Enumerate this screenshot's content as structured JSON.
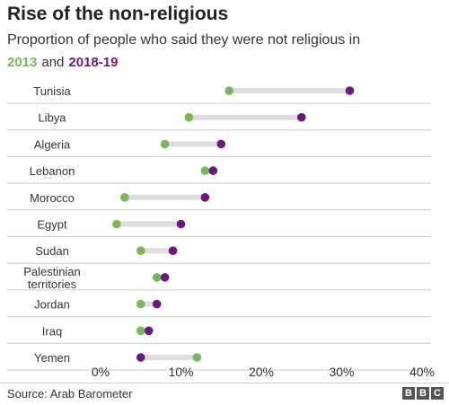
{
  "header": {
    "title": "Rise of the non-religious",
    "subtitle": "Proportion of people who said they were not religious in"
  },
  "legend": {
    "label_2013": "2013",
    "connector": "and",
    "label_2018": "2018-19"
  },
  "colors": {
    "y2013": "#7cb65a",
    "y2018": "#6a1a7c",
    "connector_bar": "#dddddd",
    "gridline": "#cccccc"
  },
  "chart_data": {
    "type": "dumbbell",
    "title": "Rise of the non-religious",
    "subtitle": "Proportion of people who said they were not religious in",
    "xlim": [
      0,
      40
    ],
    "xticks": [
      0,
      10,
      20,
      30,
      40
    ],
    "xtick_labels": [
      "0%",
      "10%",
      "20%",
      "30%",
      "40%"
    ],
    "unit": "%",
    "grid": true,
    "legend_placement": "top-left",
    "categories": [
      "Tunisia",
      "Libya",
      "Algeria",
      "Lebanon",
      "Morocco",
      "Egypt",
      "Sudan",
      "Palestinian territories",
      "Jordan",
      "Iraq",
      "Yemen"
    ],
    "category_lines": [
      [
        "Tunisia"
      ],
      [
        "Libya"
      ],
      [
        "Algeria"
      ],
      [
        "Lebanon"
      ],
      [
        "Morocco"
      ],
      [
        "Egypt"
      ],
      [
        "Sudan"
      ],
      [
        "Palestinian",
        "territories"
      ],
      [
        "Jordan"
      ],
      [
        "Iraq"
      ],
      [
        "Yemen"
      ]
    ],
    "series": [
      {
        "name": "2013",
        "values": [
          16,
          11,
          8,
          13,
          3,
          2,
          5,
          7,
          5,
          5,
          12
        ]
      },
      {
        "name": "2018-19",
        "values": [
          31,
          25,
          15,
          14,
          13,
          10,
          9,
          8,
          7,
          6,
          5
        ]
      }
    ]
  },
  "footer": {
    "source": "Source: Arab Barometer",
    "logo_letters": [
      "B",
      "B",
      "C"
    ]
  }
}
